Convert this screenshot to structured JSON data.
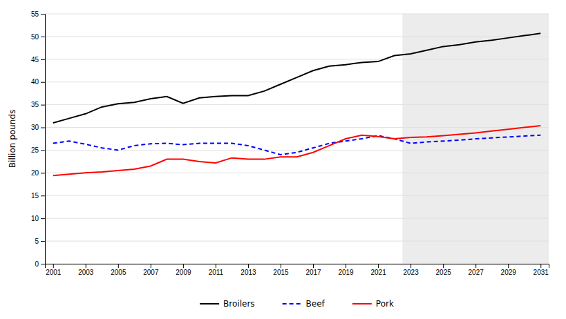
{
  "chart_data": {
    "type": "line",
    "y_label": "Billion pounds",
    "x": [
      2001,
      2002,
      2003,
      2004,
      2005,
      2006,
      2007,
      2008,
      2009,
      2010,
      2011,
      2012,
      2013,
      2014,
      2015,
      2016,
      2017,
      2018,
      2019,
      2020,
      2021,
      2022,
      2023,
      2024,
      2025,
      2026,
      2027,
      2028,
      2029,
      2030,
      2031
    ],
    "series": [
      {
        "name": "Broilers",
        "color": "#000000",
        "line_style": "solid",
        "values": [
          31.0,
          32.0,
          33.0,
          34.5,
          35.2,
          35.5,
          36.3,
          36.8,
          35.3,
          36.5,
          36.8,
          37.0,
          37.0,
          38.0,
          39.5,
          41.0,
          42.5,
          43.5,
          43.8,
          44.3,
          44.5,
          45.8,
          46.2,
          47.0,
          47.8,
          48.2,
          48.8,
          49.2,
          49.7,
          50.2,
          50.7
        ]
      },
      {
        "name": "Beef",
        "color": "#0000ff",
        "line_style": "dashed",
        "values": [
          26.5,
          27.0,
          26.3,
          25.5,
          25.0,
          26.0,
          26.4,
          26.5,
          26.2,
          26.5,
          26.5,
          26.5,
          26.0,
          25.0,
          24.0,
          24.5,
          25.5,
          26.5,
          27.0,
          27.5,
          28.2,
          27.5,
          26.5,
          26.8,
          27.0,
          27.2,
          27.5,
          27.7,
          27.9,
          28.1,
          28.3
        ]
      },
      {
        "name": "Pork",
        "color": "#ff0000",
        "line_style": "solid",
        "values": [
          19.4,
          19.7,
          20.0,
          20.2,
          20.5,
          20.8,
          21.5,
          23.0,
          23.0,
          22.5,
          22.2,
          23.3,
          23.0,
          23.0,
          23.5,
          23.5,
          24.5,
          26.0,
          27.5,
          28.3,
          28.0,
          27.5,
          27.8,
          27.9,
          28.2,
          28.5,
          28.8,
          29.2,
          29.6,
          30.0,
          30.4
        ]
      }
    ],
    "projection_start": 2022.5,
    "xlim": [
      2000.5,
      2031.5
    ],
    "xticks": [
      2001,
      2003,
      2005,
      2007,
      2009,
      2011,
      2013,
      2015,
      2017,
      2019,
      2021,
      2023,
      2025,
      2027,
      2029,
      2031
    ],
    "ylim": [
      0,
      55
    ],
    "yticks": [
      0,
      5,
      10,
      15,
      20,
      25,
      30,
      35,
      40,
      45,
      50,
      55
    ],
    "grid": true,
    "legend": "bottom"
  }
}
